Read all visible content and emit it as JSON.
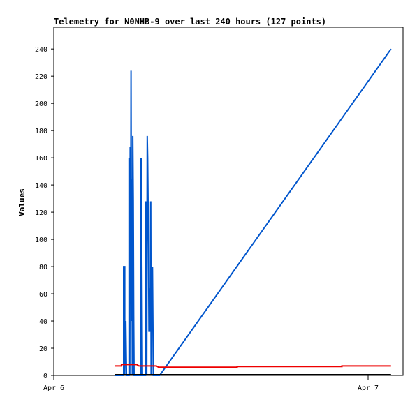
{
  "chart_data": {
    "type": "line",
    "title": "Telemetry for N0NHB-9 over last 240 hours (127 points)",
    "xlabel": "",
    "ylabel": "Values",
    "x_axis_type": "date",
    "x_range": [
      "2025-04-06T00:00",
      "2025-04-07T02:40"
    ],
    "x_ticks": [
      {
        "value": "2025-04-06T00:00",
        "label": "Apr 6"
      },
      {
        "value": "2025-04-07T00:00",
        "label": "Apr 7"
      }
    ],
    "ylim": [
      0,
      256
    ],
    "y_ticks": [
      0,
      20,
      40,
      60,
      80,
      100,
      120,
      140,
      160,
      180,
      200,
      220,
      240
    ],
    "grid": false,
    "legend": "none",
    "series": [
      {
        "color": "#0055cc",
        "points": [
          [
            "2025-04-06T04:40",
            0
          ],
          [
            "2025-04-06T05:20",
            0
          ],
          [
            "2025-04-06T05:20",
            80
          ],
          [
            "2025-04-06T05:25",
            80
          ],
          [
            "2025-04-06T05:25",
            0
          ],
          [
            "2025-04-06T05:30",
            40
          ],
          [
            "2025-04-06T05:33",
            0
          ],
          [
            "2025-04-06T05:45",
            0
          ],
          [
            "2025-04-06T05:45",
            160
          ],
          [
            "2025-04-06T05:48",
            0
          ],
          [
            "2025-04-06T05:50",
            168
          ],
          [
            "2025-04-06T05:52",
            56
          ],
          [
            "2025-04-06T05:54",
            224
          ],
          [
            "2025-04-06T05:56",
            40
          ],
          [
            "2025-04-06T05:58",
            144
          ],
          [
            "2025-04-06T06:00",
            0
          ],
          [
            "2025-04-06T06:02",
            176
          ],
          [
            "2025-04-06T06:04",
            128
          ],
          [
            "2025-04-06T06:06",
            44
          ],
          [
            "2025-04-06T06:08",
            0
          ],
          [
            "2025-04-06T06:40",
            0
          ],
          [
            "2025-04-06T06:40",
            160
          ],
          [
            "2025-04-06T06:43",
            96
          ],
          [
            "2025-04-06T06:46",
            0
          ],
          [
            "2025-04-06T07:00",
            0
          ],
          [
            "2025-04-06T07:02",
            128
          ],
          [
            "2025-04-06T07:04",
            80
          ],
          [
            "2025-04-06T07:06",
            0
          ],
          [
            "2025-04-06T07:08",
            176
          ],
          [
            "2025-04-06T07:10",
            160
          ],
          [
            "2025-04-06T07:12",
            127
          ],
          [
            "2025-04-06T07:14",
            96
          ],
          [
            "2025-04-06T07:16",
            32
          ],
          [
            "2025-04-06T07:18",
            64
          ],
          [
            "2025-04-06T07:20",
            32
          ],
          [
            "2025-04-06T07:22",
            64
          ],
          [
            "2025-04-06T07:24",
            128
          ],
          [
            "2025-04-06T07:26",
            0
          ],
          [
            "2025-04-06T07:28",
            64
          ],
          [
            "2025-04-06T07:30",
            32
          ],
          [
            "2025-04-06T07:32",
            80
          ],
          [
            "2025-04-06T07:34",
            40
          ],
          [
            "2025-04-06T07:36",
            0
          ],
          [
            "2025-04-06T08:05",
            0
          ],
          [
            "2025-04-07T01:45",
            240
          ]
        ]
      },
      {
        "color": "#ee0000",
        "points": [
          [
            "2025-04-06T04:40",
            7
          ],
          [
            "2025-04-06T05:10",
            7
          ],
          [
            "2025-04-06T05:10",
            8
          ],
          [
            "2025-04-06T06:20",
            8
          ],
          [
            "2025-04-06T06:30",
            7
          ],
          [
            "2025-04-06T07:50",
            7
          ],
          [
            "2025-04-06T08:00",
            6
          ],
          [
            "2025-04-06T14:00",
            6
          ],
          [
            "2025-04-06T14:00",
            6.5
          ],
          [
            "2025-04-06T22:00",
            6.5
          ],
          [
            "2025-04-06T22:00",
            7
          ],
          [
            "2025-04-07T01:45",
            7
          ]
        ]
      },
      {
        "color": "#000000",
        "points": [
          [
            "2025-04-06T04:40",
            0.5
          ],
          [
            "2025-04-07T01:45",
            0.5
          ]
        ]
      }
    ]
  }
}
